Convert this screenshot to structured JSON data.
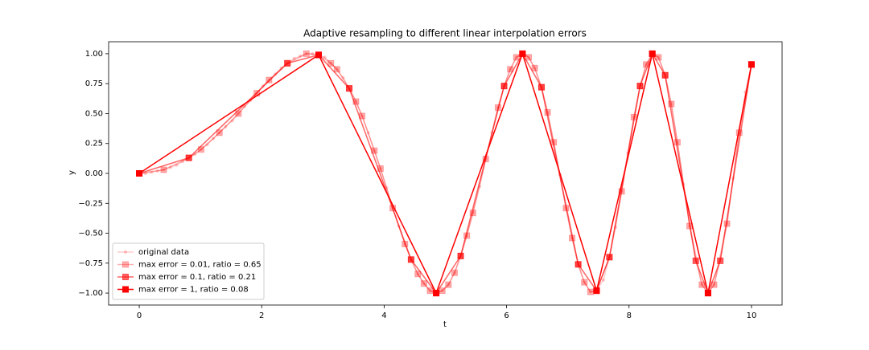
{
  "chart_data": {
    "type": "line",
    "title": "Adaptive resampling to different linear interpolation errors",
    "xlabel": "t",
    "ylabel": "y",
    "xlim": [
      -0.5,
      10.5
    ],
    "ylim": [
      -1.1,
      1.1
    ],
    "xticks": [
      0,
      2,
      4,
      6,
      8,
      10
    ],
    "yticks": [
      {
        "value": -1,
        "label": "−1.00"
      },
      {
        "value": -0.75,
        "label": "−0.75"
      },
      {
        "value": -0.5,
        "label": "−0.50"
      },
      {
        "value": -0.25,
        "label": "−0.25"
      },
      {
        "value": 0,
        "label": "0.00"
      },
      {
        "value": 0.25,
        "label": "0.25"
      },
      {
        "value": 0.5,
        "label": "0.50"
      },
      {
        "value": 0.75,
        "label": "0.75"
      },
      {
        "value": 1,
        "label": "1.00"
      }
    ],
    "legend": "lower left",
    "series": [
      {
        "name": "original data",
        "color": "#ff0000",
        "alpha": 0.2,
        "marker": "dot",
        "x": [
          0,
          0.1,
          0.2,
          0.3,
          0.4,
          0.51,
          0.61,
          0.71,
          0.81,
          0.91,
          1.01,
          1.11,
          1.21,
          1.31,
          1.41,
          1.52,
          1.62,
          1.72,
          1.82,
          1.92,
          2.02,
          2.12,
          2.22,
          2.32,
          2.42,
          2.53,
          2.63,
          2.73,
          2.83,
          2.93,
          3.03,
          3.13,
          3.23,
          3.33,
          3.43,
          3.54,
          3.64,
          3.74,
          3.84,
          3.94,
          4.04,
          4.14,
          4.24,
          4.34,
          4.44,
          4.55,
          4.65,
          4.75,
          4.85,
          4.95,
          5.05,
          5.15,
          5.25,
          5.35,
          5.45,
          5.56,
          5.66,
          5.76,
          5.86,
          5.96,
          6.06,
          6.16,
          6.26,
          6.36,
          6.46,
          6.57,
          6.67,
          6.77,
          6.87,
          6.97,
          7.07,
          7.17,
          7.27,
          7.37,
          7.47,
          7.58,
          7.68,
          7.78,
          7.88,
          7.98,
          8.08,
          8.18,
          8.28,
          8.38,
          8.48,
          8.59,
          8.69,
          8.79,
          8.89,
          8.99,
          9.09,
          9.19,
          9.29,
          9.39,
          9.49,
          9.6,
          9.7,
          9.8,
          9.9,
          10
        ],
        "values": [
          0,
          0,
          0.01,
          0.02,
          0.03,
          0.05,
          0.07,
          0.1,
          0.13,
          0.16,
          0.2,
          0.24,
          0.29,
          0.34,
          0.39,
          0.44,
          0.5,
          0.56,
          0.61,
          0.67,
          0.73,
          0.78,
          0.83,
          0.88,
          0.92,
          0.96,
          0.98,
          1,
          1,
          0.99,
          0.97,
          0.92,
          0.87,
          0.8,
          0.71,
          0.6,
          0.48,
          0.34,
          0.19,
          0.04,
          -0.12,
          -0.29,
          -0.44,
          -0.59,
          -0.72,
          -0.84,
          -0.92,
          -0.98,
          -1,
          -0.98,
          -0.93,
          -0.83,
          -0.69,
          -0.52,
          -0.33,
          -0.11,
          0.12,
          0.34,
          0.55,
          0.73,
          0.87,
          0.97,
          1,
          0.97,
          0.88,
          0.72,
          0.51,
          0.26,
          -0.01,
          -0.29,
          -0.54,
          -0.76,
          -0.91,
          -0.99,
          -0.98,
          -0.89,
          -0.7,
          -0.45,
          -0.15,
          0.17,
          0.47,
          0.73,
          0.91,
          1,
          0.97,
          0.82,
          0.58,
          0.26,
          -0.09,
          -0.44,
          -0.73,
          -0.93,
          -1,
          -0.93,
          -0.73,
          -0.42,
          -0.04,
          0.34,
          0.68,
          0.91
        ]
      },
      {
        "name": "max error = 0.01, ratio = 0.65",
        "color": "#ff0000",
        "alpha": 0.3,
        "marker": "square",
        "x": [
          0,
          0.4,
          0.81,
          1.01,
          1.31,
          1.62,
          1.92,
          2.12,
          2.42,
          2.73,
          2.93,
          3.13,
          3.23,
          3.43,
          3.54,
          3.64,
          3.84,
          3.94,
          4.14,
          4.34,
          4.44,
          4.55,
          4.65,
          4.75,
          4.85,
          4.95,
          5.05,
          5.15,
          5.25,
          5.35,
          5.45,
          5.66,
          5.86,
          5.96,
          6.06,
          6.16,
          6.26,
          6.36,
          6.46,
          6.57,
          6.67,
          6.77,
          6.97,
          7.07,
          7.17,
          7.27,
          7.37,
          7.47,
          7.68,
          7.88,
          8.08,
          8.18,
          8.28,
          8.38,
          8.48,
          8.59,
          8.69,
          8.79,
          8.99,
          9.19,
          9.29,
          9.39,
          9.6,
          9.8,
          10
        ],
        "values": [
          0,
          0.03,
          0.13,
          0.2,
          0.34,
          0.5,
          0.67,
          0.78,
          0.92,
          1,
          0.99,
          0.92,
          0.87,
          0.71,
          0.6,
          0.48,
          0.19,
          0.04,
          -0.29,
          -0.59,
          -0.72,
          -0.84,
          -0.92,
          -0.98,
          -1,
          -0.98,
          -0.93,
          -0.83,
          -0.69,
          -0.52,
          -0.33,
          0.12,
          0.55,
          0.73,
          0.87,
          0.97,
          1,
          0.97,
          0.88,
          0.72,
          0.51,
          0.26,
          -0.29,
          -0.54,
          -0.76,
          -0.91,
          -0.99,
          -0.98,
          -0.7,
          -0.15,
          0.47,
          0.73,
          0.91,
          1,
          0.97,
          0.82,
          0.58,
          0.26,
          -0.44,
          -0.93,
          -1,
          -0.93,
          -0.42,
          0.34,
          0.91
        ]
      },
      {
        "name": "max error = 0.1, ratio = 0.21",
        "color": "#ff0000",
        "alpha": 0.6,
        "marker": "square",
        "x": [
          0,
          0.81,
          2.42,
          2.93,
          3.43,
          4.44,
          4.85,
          5.25,
          5.96,
          6.26,
          6.57,
          7.17,
          7.47,
          7.68,
          8.18,
          8.38,
          8.59,
          9.09,
          9.29,
          9.49,
          10
        ],
        "values": [
          0,
          0.13,
          0.92,
          0.99,
          0.71,
          -0.72,
          -1,
          -0.69,
          0.73,
          1,
          0.72,
          -0.76,
          -0.98,
          -0.7,
          0.73,
          1,
          0.82,
          -0.73,
          -1,
          -0.73,
          0.91
        ]
      },
      {
        "name": "max error = 1, ratio = 0.08",
        "color": "#ff0000",
        "alpha": 1,
        "marker": "square",
        "x": [
          0,
          2.93,
          4.85,
          6.26,
          7.47,
          8.38,
          9.29,
          10
        ],
        "values": [
          0,
          0.99,
          -1,
          1,
          -0.98,
          1,
          -1,
          0.91
        ]
      }
    ]
  }
}
